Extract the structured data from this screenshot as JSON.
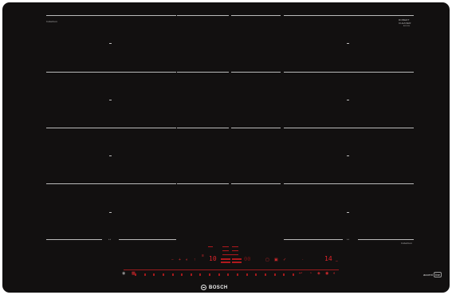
{
  "product": {
    "brand": "BOSCH",
    "series_badge": "accent line",
    "accent_word_1": "accent",
    "accent_word_2": "line"
  },
  "labels": {
    "top_left": "Induction",
    "top_right_line1": "ROBERT",
    "top_right_line2": "CLEANER",
    "top_right_line3": "BOSCH",
    "bottom_right": "Induction",
    "flex_left": "↔",
    "flex_right": "↔"
  },
  "controls": {
    "left_display": "10",
    "right_display": "14",
    "top_display": "60",
    "mid_display": "00"
  },
  "colors": {
    "glass": "#121010",
    "accent_red": "#e0242a",
    "markings": "#d8d8d8",
    "background": "#ffffff"
  },
  "icons": [
    "power-icon",
    "lock-icon",
    "timer-icon",
    "boost-icon",
    "flex-zone-icon",
    "menu-icon"
  ]
}
